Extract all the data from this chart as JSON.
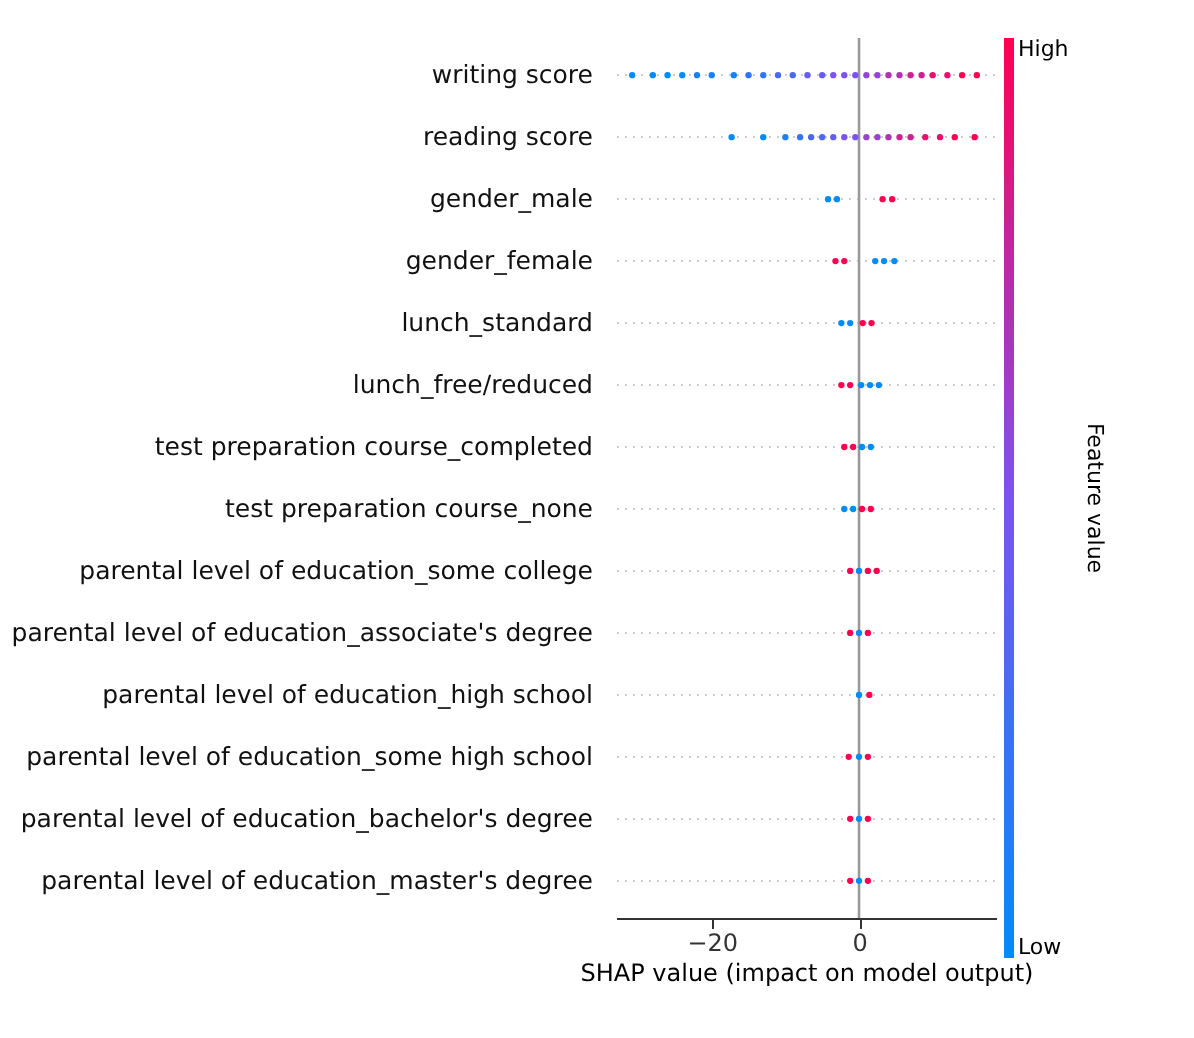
{
  "chart_data": {
    "type": "scatter",
    "orientation": "horizontal",
    "categories": [
      "writing score",
      "reading score",
      "gender_male",
      "gender_female",
      "lunch_standard",
      "lunch_free/reduced",
      "test preparation course_completed",
      "test preparation course_none",
      "parental level of education_some college",
      "parental level of education_associate's degree",
      "parental level of education_high school",
      "parental level of education_some high school",
      "parental level of education_bachelor's degree",
      "parental level of education_master's degree"
    ],
    "xlabel": "SHAP value (impact on model output)",
    "clabel": "Feature value",
    "xlim": [
      -33,
      18.6
    ],
    "xticks": [
      -20,
      0
    ],
    "clim": [
      0,
      1
    ],
    "cticks": [
      {
        "value": 0,
        "label": "Low"
      },
      {
        "value": 1,
        "label": "High"
      }
    ],
    "grid": "y",
    "ref_lines": [
      {
        "axis": "x",
        "value": 0,
        "color": "#999999"
      }
    ],
    "series": [
      {
        "x": [
          "writing score",
          "writing score",
          "writing score",
          "writing score",
          "writing score",
          "writing score",
          "writing score",
          "writing score",
          "writing score",
          "writing score",
          "writing score",
          "writing score",
          "writing score",
          "writing score",
          "writing score",
          "writing score",
          "writing score",
          "writing score",
          "writing score",
          "writing score",
          "writing score",
          "writing score",
          "writing score",
          "writing score",
          "writing score",
          "writing score"
        ],
        "values": [
          -30.8,
          -28,
          -26,
          -24,
          -22,
          -20,
          -17,
          -15,
          -13,
          -11,
          -9,
          -7,
          -5,
          -3.5,
          -2,
          -0.5,
          1,
          2.5,
          4,
          5.5,
          7,
          8.5,
          10,
          12,
          14,
          16
        ],
        "colors": [
          "#008bfb",
          "#008bfb",
          "#008bfb",
          "#008bfb",
          "#1980f9",
          "#1980f9",
          "#1980f9",
          "#3274f8",
          "#3274f8",
          "#4a69f6",
          "#4a69f6",
          "#635df5",
          "#635df5",
          "#7c52f3",
          "#7c52f3",
          "#7c52f3",
          "#9642d3",
          "#9642d3",
          "#b031b2",
          "#b031b2",
          "#cb2192",
          "#cb2192",
          "#e51071",
          "#e51071",
          "#ff0051",
          "#ff0051"
        ]
      },
      {
        "x": [
          "reading score",
          "reading score",
          "reading score",
          "reading score",
          "reading score",
          "reading score",
          "reading score",
          "reading score",
          "reading score",
          "reading score",
          "reading score",
          "reading score",
          "reading score",
          "reading score",
          "reading score",
          "reading score",
          "reading score",
          "reading score"
        ],
        "values": [
          -17.3,
          -13,
          -10,
          -8,
          -6.5,
          -5,
          -3.5,
          -2,
          -0.5,
          1,
          2.5,
          4,
          5.5,
          7,
          9,
          11,
          13,
          15.7
        ],
        "colors": [
          "#008bfb",
          "#008bfb",
          "#1980f9",
          "#3274f8",
          "#4a69f6",
          "#4a69f6",
          "#635df5",
          "#7c52f3",
          "#7c52f3",
          "#9642d3",
          "#9642d3",
          "#b031b2",
          "#cb2192",
          "#cb2192",
          "#e51071",
          "#e51071",
          "#ff0051",
          "#ff0051"
        ]
      },
      {
        "x": [
          "gender_male",
          "gender_male",
          "gender_male",
          "gender_male"
        ],
        "values": [
          -4.2,
          -3,
          3.2,
          4.5
        ],
        "colors": [
          "#008bfb",
          "#008bfb",
          "#ff0051",
          "#ff0051"
        ]
      },
      {
        "x": [
          "gender_female",
          "gender_female",
          "gender_female",
          "gender_female",
          "gender_female"
        ],
        "values": [
          -3.2,
          -2,
          2.2,
          3.4,
          4.8
        ],
        "colors": [
          "#ff0051",
          "#ff0051",
          "#008bfb",
          "#008bfb",
          "#008bfb"
        ]
      },
      {
        "x": [
          "lunch_standard",
          "lunch_standard",
          "lunch_standard",
          "lunch_standard"
        ],
        "values": [
          -2.4,
          -1.2,
          0.5,
          1.7
        ],
        "colors": [
          "#008bfb",
          "#008bfb",
          "#ff0051",
          "#ff0051"
        ]
      },
      {
        "x": [
          "lunch_free/reduced",
          "lunch_free/reduced",
          "lunch_free/reduced",
          "lunch_free/reduced",
          "lunch_free/reduced"
        ],
        "values": [
          -2.4,
          -1.2,
          0.3,
          1.5,
          2.7
        ],
        "colors": [
          "#ff0051",
          "#ff0051",
          "#008bfb",
          "#008bfb",
          "#008bfb"
        ]
      },
      {
        "x": [
          "test preparation course_completed",
          "test preparation course_completed",
          "test preparation course_completed",
          "test preparation course_completed"
        ],
        "values": [
          -2,
          -0.8,
          0.4,
          1.6
        ],
        "colors": [
          "#ff0051",
          "#ff0051",
          "#008bfb",
          "#008bfb"
        ]
      },
      {
        "x": [
          "test preparation course_none",
          "test preparation course_none",
          "test preparation course_none",
          "test preparation course_none"
        ],
        "values": [
          -2,
          -0.8,
          0.4,
          1.6
        ],
        "colors": [
          "#008bfb",
          "#008bfb",
          "#ff0051",
          "#ff0051"
        ]
      },
      {
        "x": [
          "parental level of education_some college",
          "parental level of education_some college",
          "parental level of education_some college",
          "parental level of education_some college"
        ],
        "values": [
          -1.2,
          0,
          1.2,
          2.4
        ],
        "colors": [
          "#ff0051",
          "#008bfb",
          "#ff0051",
          "#ff0051"
        ]
      },
      {
        "x": [
          "parental level of education_associate's degree",
          "parental level of education_associate's degree",
          "parental level of education_associate's degree"
        ],
        "values": [
          -1.2,
          0,
          1.2
        ],
        "colors": [
          "#ff0051",
          "#008bfb",
          "#ff0051"
        ]
      },
      {
        "x": [
          "parental level of education_high school",
          "parental level of education_high school"
        ],
        "values": [
          0,
          1.4
        ],
        "colors": [
          "#008bfb",
          "#ff0051"
        ]
      },
      {
        "x": [
          "parental level of education_some high school",
          "parental level of education_some high school",
          "parental level of education_some high school"
        ],
        "values": [
          -1.4,
          0,
          1.2
        ],
        "colors": [
          "#ff0051",
          "#008bfb",
          "#ff0051"
        ]
      },
      {
        "x": [
          "parental level of education_bachelor's degree",
          "parental level of education_bachelor's degree",
          "parental level of education_bachelor's degree"
        ],
        "values": [
          -1.2,
          0,
          1.2
        ],
        "colors": [
          "#ff0051",
          "#008bfb",
          "#ff0051"
        ]
      },
      {
        "x": [
          "parental level of education_master's degree",
          "parental level of education_master's degree",
          "parental level of education_master's degree"
        ],
        "values": [
          -1.2,
          0,
          1.2
        ],
        "colors": [
          "#ff0051",
          "#008bfb",
          "#ff0051"
        ]
      }
    ]
  }
}
